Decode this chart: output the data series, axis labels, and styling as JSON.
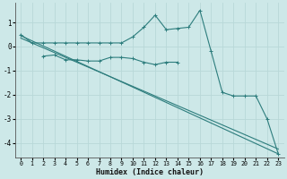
{
  "bg_color": "#cde8e8",
  "grid_color": "#b8d8d8",
  "line_color": "#2d7d7d",
  "line1": {
    "x": [
      0,
      1,
      2,
      3,
      4,
      5,
      6,
      7,
      8,
      9,
      10,
      11,
      12,
      13,
      14,
      15,
      16,
      17,
      18,
      19,
      20,
      21,
      22,
      23
    ],
    "y": [
      0.5,
      0.15,
      0.15,
      0.15,
      0.15,
      0.15,
      0.15,
      0.15,
      0.15,
      0.15,
      0.4,
      0.8,
      1.3,
      0.7,
      0.75,
      0.8,
      1.5,
      -0.2,
      -1.9,
      -2.05,
      -2.05,
      -2.05,
      -3.0,
      -4.45
    ]
  },
  "line2": {
    "x": [
      2,
      3,
      4,
      5,
      6,
      7,
      8,
      9,
      10,
      11,
      12,
      13,
      14
    ],
    "y": [
      -0.4,
      -0.35,
      -0.55,
      -0.55,
      -0.6,
      -0.6,
      -0.45,
      -0.45,
      -0.5,
      -0.65,
      -0.75,
      -0.65,
      -0.65
    ]
  },
  "line3": {
    "x": [
      0,
      23
    ],
    "y": [
      0.45,
      -4.45
    ]
  },
  "line4": {
    "x": [
      0,
      23
    ],
    "y": [
      0.35,
      -4.25
    ]
  },
  "xlabel": "Humidex (Indice chaleur)",
  "xlim": [
    -0.5,
    23.5
  ],
  "ylim": [
    -4.6,
    1.8
  ],
  "yticks": [
    -4,
    -3,
    -2,
    -1,
    0,
    1
  ],
  "xticks": [
    0,
    1,
    2,
    3,
    4,
    5,
    6,
    7,
    8,
    9,
    10,
    11,
    12,
    13,
    14,
    15,
    16,
    17,
    18,
    19,
    20,
    21,
    22,
    23
  ]
}
